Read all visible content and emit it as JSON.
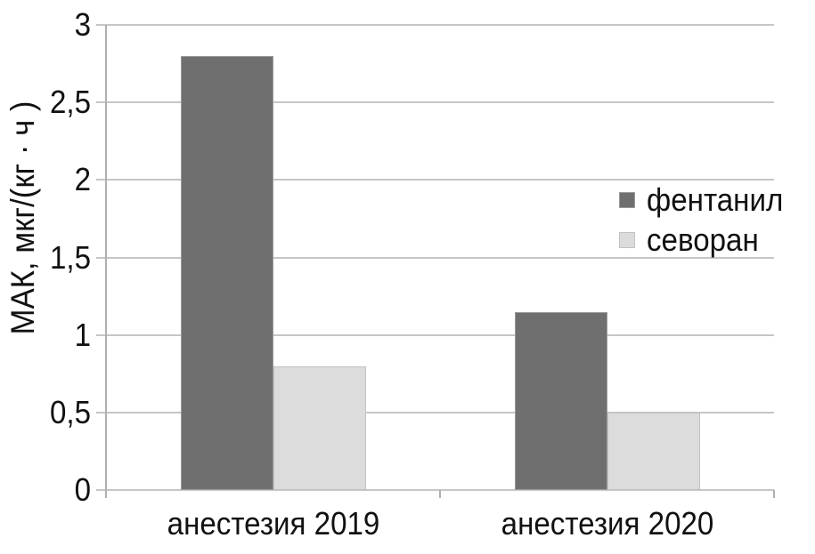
{
  "chart_data": {
    "type": "bar",
    "title": "",
    "xlabel": "",
    "ylabel": "МАК, мкг/(кг · ч )",
    "categories": [
      "анестезия 2019",
      "анестезия 2020"
    ],
    "series": [
      {
        "name": "фентанил",
        "color": "#6f6f6f",
        "edge_color": "#9a9a9a",
        "values": [
          2.8,
          1.15
        ]
      },
      {
        "name": "севоран",
        "color": "#dcdcdc",
        "edge_color": "#c2c2c2",
        "values": [
          0.8,
          0.5
        ]
      }
    ],
    "ylim": [
      0,
      3
    ],
    "yticks": [
      {
        "value": 0,
        "label": "0"
      },
      {
        "value": 0.5,
        "label": "0,5"
      },
      {
        "value": 1,
        "label": "1"
      },
      {
        "value": 1.5,
        "label": "1,5"
      },
      {
        "value": 2,
        "label": "2"
      },
      {
        "value": 2.5,
        "label": "2,5"
      },
      {
        "value": 3,
        "label": "3"
      }
    ],
    "grid": true,
    "legend_position": "inside-right"
  },
  "colors": {
    "background": "#ffffff",
    "gridline": "#c6c6c6",
    "axis": "#b0b0b0",
    "text": "#111111"
  }
}
